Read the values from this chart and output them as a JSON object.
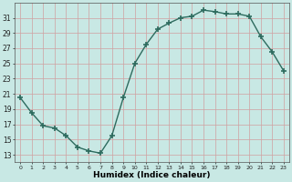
{
  "x": [
    0,
    1,
    2,
    3,
    4,
    5,
    6,
    7,
    8,
    9,
    10,
    11,
    12,
    13,
    14,
    15,
    16,
    17,
    18,
    19,
    20,
    21,
    22,
    23
  ],
  "y": [
    20.5,
    18.5,
    16.8,
    16.5,
    15.5,
    14.0,
    13.5,
    13.2,
    15.5,
    20.5,
    25.0,
    27.5,
    29.5,
    30.3,
    31.0,
    31.2,
    32.0,
    31.8,
    31.5,
    31.5,
    31.2,
    28.5,
    26.5,
    24.0
  ],
  "line_color": "#2d6b5e",
  "marker": "+",
  "markersize": 4,
  "markeredgewidth": 1.2,
  "linewidth": 1.0,
  "xlabel": "Humidex (Indice chaleur)",
  "bg_color": "#c8e8e4",
  "grid_color": "#d0a0a0",
  "ylim": [
    12,
    33
  ],
  "xlim": [
    -0.5,
    23.5
  ],
  "yticks": [
    13,
    15,
    17,
    19,
    21,
    23,
    25,
    27,
    29,
    31
  ],
  "xticks": [
    0,
    1,
    2,
    3,
    4,
    5,
    6,
    7,
    8,
    9,
    10,
    11,
    12,
    13,
    14,
    15,
    16,
    17,
    18,
    19,
    20,
    21,
    22,
    23
  ]
}
